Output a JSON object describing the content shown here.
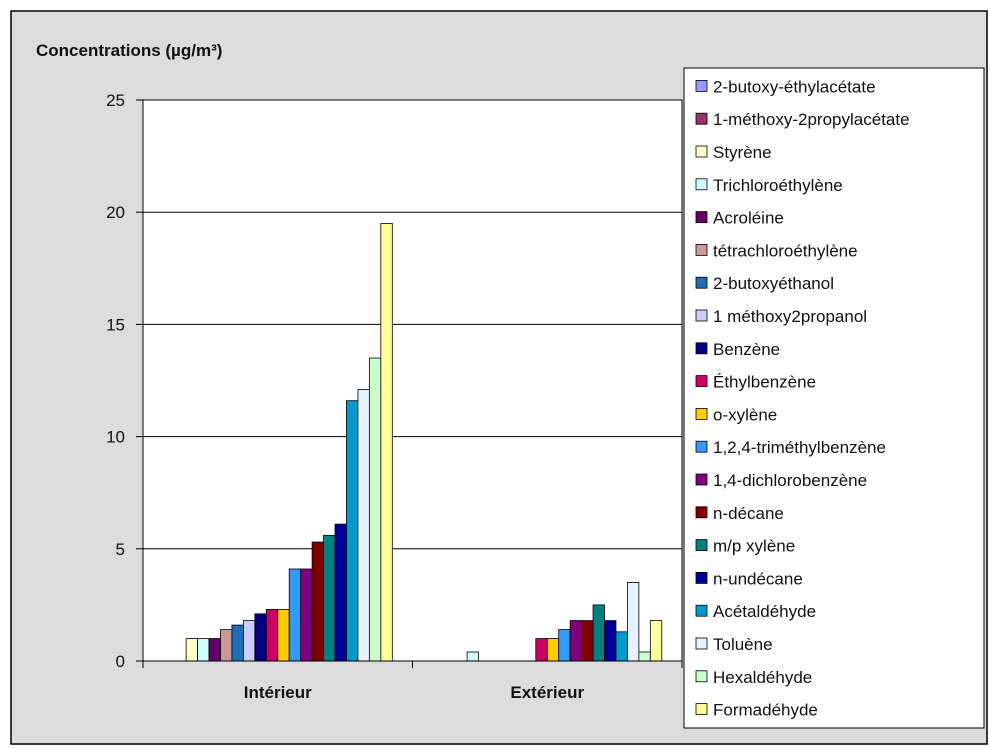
{
  "chart_data": {
    "type": "bar",
    "title": "Concentrations (µg/m³)",
    "xlabel": "",
    "ylabel": "",
    "ylim": [
      0,
      25
    ],
    "yticks": [
      "0",
      "5",
      "10",
      "15",
      "20",
      "25"
    ],
    "grid": true,
    "legend_position": "right",
    "categories": [
      "Intérieur",
      "Extérieur"
    ],
    "series": [
      {
        "name": "2-butoxy-éthylacétate",
        "color": "#9999ff",
        "values": [
          0,
          0
        ]
      },
      {
        "name": "1-méthoxy-2propylacétate",
        "color": "#993366",
        "values": [
          0,
          0
        ]
      },
      {
        "name": "Styrène",
        "color": "#ffffcc",
        "values": [
          1.0,
          0
        ]
      },
      {
        "name": "Trichloroéthylène",
        "color": "#ccffff",
        "values": [
          1.0,
          0.4
        ]
      },
      {
        "name": "Acroléine",
        "color": "#660066",
        "values": [
          1.0,
          0
        ]
      },
      {
        "name": "tétrachloroéthylène",
        "color": "#cc9999",
        "values": [
          1.4,
          0
        ]
      },
      {
        "name": "2-butoxyéthanol",
        "color": "#1f6fb8",
        "values": [
          1.6,
          0
        ]
      },
      {
        "name": "1 méthoxy2propanol",
        "color": "#ccccff",
        "values": [
          1.8,
          0
        ]
      },
      {
        "name": "Benzène",
        "color": "#000080",
        "values": [
          2.1,
          0
        ]
      },
      {
        "name": "Éthylbenzène",
        "color": "#cc0066",
        "values": [
          2.3,
          1.0
        ]
      },
      {
        "name": "o-xylène",
        "color": "#ffcc00",
        "values": [
          2.3,
          1.0
        ]
      },
      {
        "name": "1,2,4-triméthylbenzène",
        "color": "#3399ff",
        "values": [
          4.1,
          1.4
        ]
      },
      {
        "name": "1,4-dichlorobenzène",
        "color": "#800080",
        "values": [
          4.1,
          1.8
        ]
      },
      {
        "name": "n-décane",
        "color": "#800000",
        "values": [
          5.3,
          1.8
        ]
      },
      {
        "name": "m/p xylène",
        "color": "#008080",
        "values": [
          5.6,
          2.5
        ]
      },
      {
        "name": "n-undécane",
        "color": "#000099",
        "values": [
          6.1,
          1.8
        ]
      },
      {
        "name": "Acétaldéhyde",
        "color": "#0099cc",
        "values": [
          11.6,
          1.3
        ]
      },
      {
        "name": "Toluène",
        "color": "#e6f2ff",
        "values": [
          12.1,
          3.5
        ]
      },
      {
        "name": "Hexaldéhyde",
        "color": "#ccffcc",
        "values": [
          13.5,
          0.4
        ]
      },
      {
        "name": "Formadéhyde",
        "color": "#ffff99",
        "values": [
          19.5,
          1.8
        ]
      }
    ]
  }
}
